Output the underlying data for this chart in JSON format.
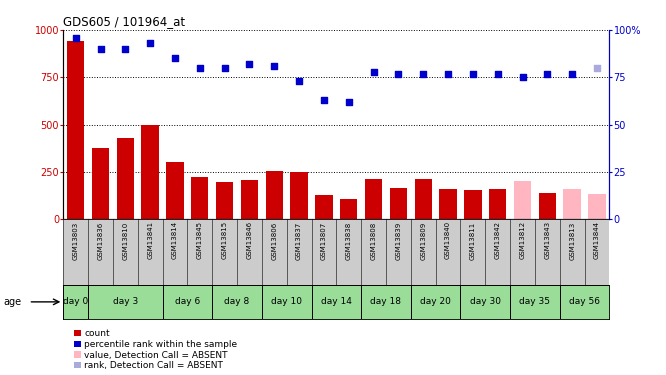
{
  "title": "GDS605 / 101964_at",
  "samples": [
    "GSM13803",
    "GSM13836",
    "GSM13810",
    "GSM13841",
    "GSM13814",
    "GSM13845",
    "GSM13815",
    "GSM13846",
    "GSM13806",
    "GSM13837",
    "GSM13807",
    "GSM13838",
    "GSM13808",
    "GSM13839",
    "GSM13809",
    "GSM13840",
    "GSM13811",
    "GSM13842",
    "GSM13812",
    "GSM13843",
    "GSM13813",
    "GSM13844"
  ],
  "count_values": [
    940,
    375,
    430,
    500,
    305,
    225,
    195,
    210,
    255,
    250,
    130,
    105,
    215,
    165,
    215,
    160,
    155,
    160,
    205,
    140,
    160,
    135
  ],
  "count_absent": [
    false,
    false,
    false,
    false,
    false,
    false,
    false,
    false,
    false,
    false,
    false,
    false,
    false,
    false,
    false,
    false,
    false,
    false,
    true,
    false,
    true,
    true
  ],
  "rank_values": [
    96,
    90,
    90,
    93,
    85,
    80,
    80,
    82,
    81,
    73,
    63,
    62,
    78,
    77,
    77,
    77,
    77,
    77,
    75,
    77,
    77,
    80
  ],
  "rank_absent": [
    false,
    false,
    false,
    false,
    false,
    false,
    false,
    false,
    false,
    false,
    false,
    false,
    false,
    false,
    false,
    false,
    false,
    false,
    false,
    false,
    false,
    true
  ],
  "day_groups": {
    "day 0": [
      "GSM13803"
    ],
    "day 3": [
      "GSM13836",
      "GSM13810",
      "GSM13841"
    ],
    "day 6": [
      "GSM13814",
      "GSM13845"
    ],
    "day 8": [
      "GSM13815",
      "GSM13846"
    ],
    "day 10": [
      "GSM13806",
      "GSM13837"
    ],
    "day 14": [
      "GSM13807",
      "GSM13838"
    ],
    "day 18": [
      "GSM13808",
      "GSM13839"
    ],
    "day 20": [
      "GSM13809",
      "GSM13840"
    ],
    "day 30": [
      "GSM13811",
      "GSM13842"
    ],
    "day 35": [
      "GSM13812",
      "GSM13843"
    ],
    "day 56": [
      "GSM13813",
      "GSM13844"
    ]
  },
  "day_group_order": [
    "day 0",
    "day 3",
    "day 6",
    "day 8",
    "day 10",
    "day 14",
    "day 18",
    "day 20",
    "day 30",
    "day 35",
    "day 56"
  ],
  "bar_color_present": "#cc0000",
  "bar_color_absent": "#ffb6c1",
  "rank_color_present": "#0000cc",
  "rank_color_absent": "#aaaadd",
  "ylim_left": [
    0,
    1000
  ],
  "ylim_right": [
    0,
    100
  ],
  "yticks_left": [
    0,
    250,
    500,
    750,
    1000
  ],
  "yticks_right": [
    0,
    25,
    50,
    75,
    100
  ],
  "ytick_labels_left": [
    "0",
    "250",
    "500",
    "750",
    "1000"
  ],
  "ytick_labels_right": [
    "0",
    "25",
    "50",
    "75",
    "100%"
  ],
  "bg_color_sample_row": "#cccccc",
  "bg_color_day_row": "#99dd99",
  "legend_items": [
    {
      "color": "#cc0000",
      "label": "count"
    },
    {
      "color": "#0000cc",
      "label": "percentile rank within the sample"
    },
    {
      "color": "#ffb6c1",
      "label": "value, Detection Call = ABSENT"
    },
    {
      "color": "#aaaadd",
      "label": "rank, Detection Call = ABSENT"
    }
  ]
}
